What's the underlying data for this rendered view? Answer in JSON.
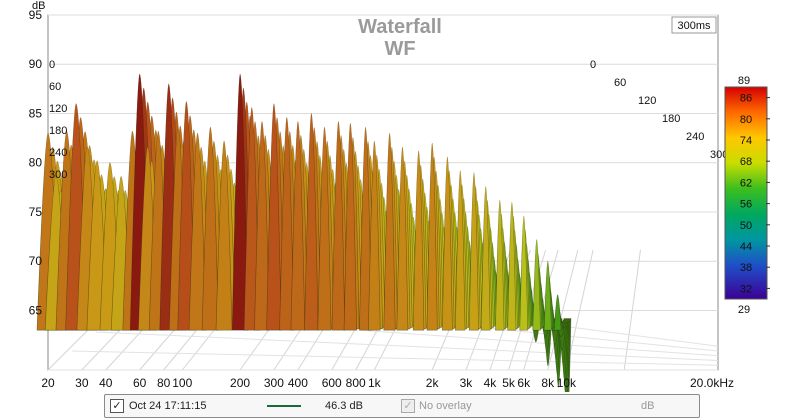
{
  "chart_data": {
    "type": "waterfall",
    "title": "Waterfall",
    "subtitle": "WF",
    "y_unit": "dB",
    "ylim": [
      62,
      95
    ],
    "y_ticks": [
      65,
      70,
      75,
      80,
      85,
      90,
      95
    ],
    "x_unit": "kHz",
    "x_scale": "log",
    "xlim": [
      20,
      20000
    ],
    "x_tick_labels": [
      {
        "v": 20,
        "t": "20"
      },
      {
        "v": 30,
        "t": "30"
      },
      {
        "v": 40,
        "t": "40"
      },
      {
        "v": 60,
        "t": "60"
      },
      {
        "v": 80,
        "t": "80"
      },
      {
        "v": 100,
        "t": "100"
      },
      {
        "v": 200,
        "t": "200"
      },
      {
        "v": 300,
        "t": "300"
      },
      {
        "v": 400,
        "t": "400"
      },
      {
        "v": 600,
        "t": "600"
      },
      {
        "v": 800,
        "t": "800"
      },
      {
        "v": 1000,
        "t": "1k"
      },
      {
        "v": 2000,
        "t": "2k"
      },
      {
        "v": 3000,
        "t": "3k"
      },
      {
        "v": 4000,
        "t": "4k"
      },
      {
        "v": 5000,
        "t": "5k"
      },
      {
        "v": 6000,
        "t": "6k"
      },
      {
        "v": 8000,
        "t": "8k"
      },
      {
        "v": 10000,
        "t": "10k"
      },
      {
        "v": 20000,
        "t": "20.0kHz"
      }
    ],
    "time_ticks_ms": [
      0,
      60,
      120,
      180,
      240,
      300
    ],
    "time_range_label": "300ms",
    "colorbar": {
      "max_label": "89",
      "min_label": "29",
      "ticks": [
        86,
        80,
        74,
        68,
        62,
        56,
        50,
        44,
        38,
        32
      ]
    },
    "front_slice_peaks": [
      {
        "f": 20,
        "db": 83
      },
      {
        "f": 22,
        "db": 79
      },
      {
        "f": 25,
        "db": 84
      },
      {
        "f": 28,
        "db": 86
      },
      {
        "f": 32,
        "db": 82
      },
      {
        "f": 36,
        "db": 81
      },
      {
        "f": 42,
        "db": 80
      },
      {
        "f": 48,
        "db": 79
      },
      {
        "f": 55,
        "db": 84
      },
      {
        "f": 60,
        "db": 89
      },
      {
        "f": 66,
        "db": 82
      },
      {
        "f": 75,
        "db": 84
      },
      {
        "f": 85,
        "db": 88
      },
      {
        "f": 95,
        "db": 84
      },
      {
        "f": 105,
        "db": 87
      },
      {
        "f": 120,
        "db": 83
      },
      {
        "f": 140,
        "db": 84
      },
      {
        "f": 165,
        "db": 83
      },
      {
        "f": 200,
        "db": 89
      },
      {
        "f": 230,
        "db": 86
      },
      {
        "f": 260,
        "db": 85
      },
      {
        "f": 300,
        "db": 86
      },
      {
        "f": 350,
        "db": 85
      },
      {
        "f": 400,
        "db": 85
      },
      {
        "f": 470,
        "db": 85
      },
      {
        "f": 550,
        "db": 84
      },
      {
        "f": 650,
        "db": 85
      },
      {
        "f": 750,
        "db": 84
      },
      {
        "f": 900,
        "db": 84
      },
      {
        "f": 1000,
        "db": 83
      },
      {
        "f": 1200,
        "db": 83
      },
      {
        "f": 1400,
        "db": 82
      },
      {
        "f": 1700,
        "db": 82
      },
      {
        "f": 2000,
        "db": 82
      },
      {
        "f": 2400,
        "db": 81
      },
      {
        "f": 2800,
        "db": 80
      },
      {
        "f": 3300,
        "db": 79
      },
      {
        "f": 3800,
        "db": 78
      },
      {
        "f": 4500,
        "db": 77
      },
      {
        "f": 5200,
        "db": 76
      },
      {
        "f": 6000,
        "db": 75
      },
      {
        "f": 7000,
        "db": 73
      },
      {
        "f": 8000,
        "db": 70
      },
      {
        "f": 9000,
        "db": 67
      }
    ]
  },
  "footer": {
    "date": "Oct 24 17:11:15",
    "level": "46.3 dB",
    "overlay_label": "No overlay",
    "overlay_unit": "dB",
    "trace_color": "#1a6b3c"
  }
}
